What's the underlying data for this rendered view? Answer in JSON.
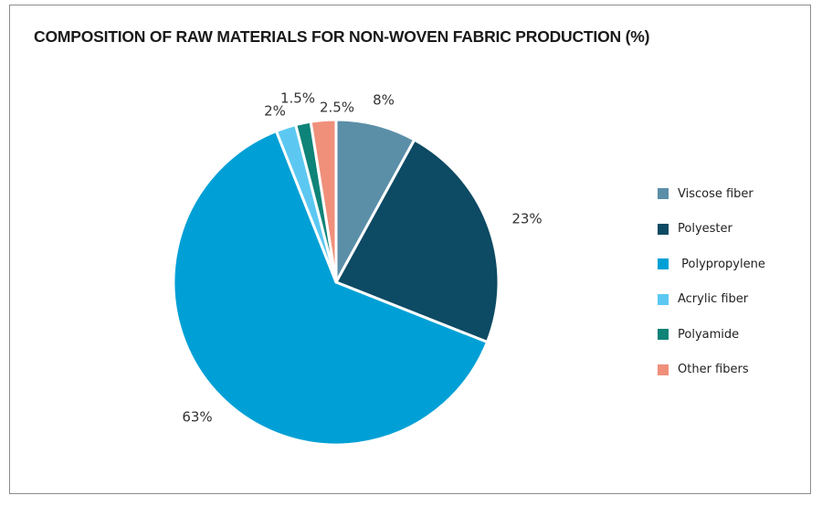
{
  "chart_data": {
    "type": "pie",
    "title": "COMPOSITION OF RAW MATERIALS FOR NON-WOVEN FABRIC PRODUCTION (%)",
    "categories": [
      "Viscose fiber",
      "Polyester",
      "Polypropylene",
      "Acrylic fiber",
      "Polyamide",
      "Other fibers"
    ],
    "legend_labels": [
      "Viscose fiber",
      "Polyester",
      " Polypropylene",
      "Acrylic fiber",
      "Polyamide",
      "Other fibers"
    ],
    "values": [
      8,
      23,
      63,
      2,
      1.5,
      2.5
    ],
    "labels": [
      "8%",
      "23%",
      "63%",
      "2%",
      "1.5%",
      "2.5%"
    ],
    "colors": [
      "#5b8fa8",
      "#0d4a63",
      "#00a0d6",
      "#5cc8f2",
      "#0e8378",
      "#f0907b"
    ],
    "legend_position": "right"
  }
}
